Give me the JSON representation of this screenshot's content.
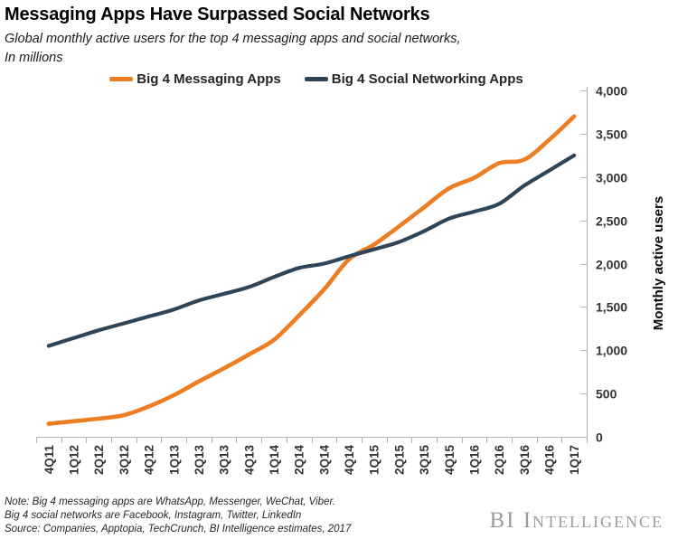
{
  "header": {
    "title": "Messaging Apps Have Surpassed Social Networks",
    "subtitle_line1": "Global monthly active users for the top 4 messaging apps and social networks,",
    "subtitle_line2": "In millions"
  },
  "legend": [
    {
      "label": "Big 4 Messaging Apps",
      "color": "#ED7D22"
    },
    {
      "label": "Big 4 Social Networking Apps",
      "color": "#2F4557"
    }
  ],
  "chart_data": {
    "type": "line",
    "title": "Messaging Apps Have Surpassed Social Networks",
    "subtitle": "Global monthly active users for the top 4 messaging apps and social networks, In millions",
    "categories": [
      "4Q11",
      "1Q12",
      "2Q12",
      "3Q12",
      "4Q12",
      "1Q13",
      "2Q13",
      "3Q13",
      "4Q13",
      "1Q14",
      "2Q14",
      "3Q14",
      "4Q14",
      "1Q15",
      "2Q15",
      "3Q15",
      "4Q15",
      "1Q16",
      "2Q16",
      "3Q16",
      "4Q16",
      "1Q17"
    ],
    "series": [
      {
        "name": "Big 4 Messaging Apps",
        "color": "#ED7D22",
        "values": [
          150,
          180,
          210,
          250,
          350,
          480,
          640,
          790,
          950,
          1120,
          1400,
          1700,
          2050,
          2220,
          2430,
          2650,
          2870,
          2990,
          3160,
          3200,
          3430,
          3700
        ]
      },
      {
        "name": "Big 4 Social Networking Apps",
        "color": "#2F4557",
        "values": [
          1050,
          1140,
          1230,
          1310,
          1390,
          1470,
          1575,
          1650,
          1730,
          1845,
          1950,
          2000,
          2085,
          2165,
          2250,
          2375,
          2520,
          2600,
          2690,
          2900,
          3075,
          3250
        ]
      }
    ],
    "xlabel": "",
    "ylabel": "Monthly active users",
    "ylim": [
      0,
      4000
    ],
    "yticks": [
      0,
      500,
      1000,
      1500,
      2000,
      2500,
      3000,
      3500,
      4000
    ],
    "ytick_labels": [
      "0",
      "500",
      "1,000",
      "1,500",
      "2,000",
      "2,500",
      "3,000",
      "3,500",
      "4,000"
    ],
    "legend_position": "top",
    "grid": false,
    "axis_side": "right",
    "axis_color": "#b3b3b3"
  },
  "footer": {
    "note_line1": "Note: Big 4 messaging apps are WhatsApp, Messenger, WeChat, Viber.",
    "note_line2": "Big 4 social networks are Facebook, Instagram, Twitter, LinkedIn",
    "note_line3": "Source: Companies,  Apptopia, TechCrunch,  BI Intelligence estimates, 2017",
    "logo_part1": "BI",
    "logo_part2": "Intelligence"
  }
}
